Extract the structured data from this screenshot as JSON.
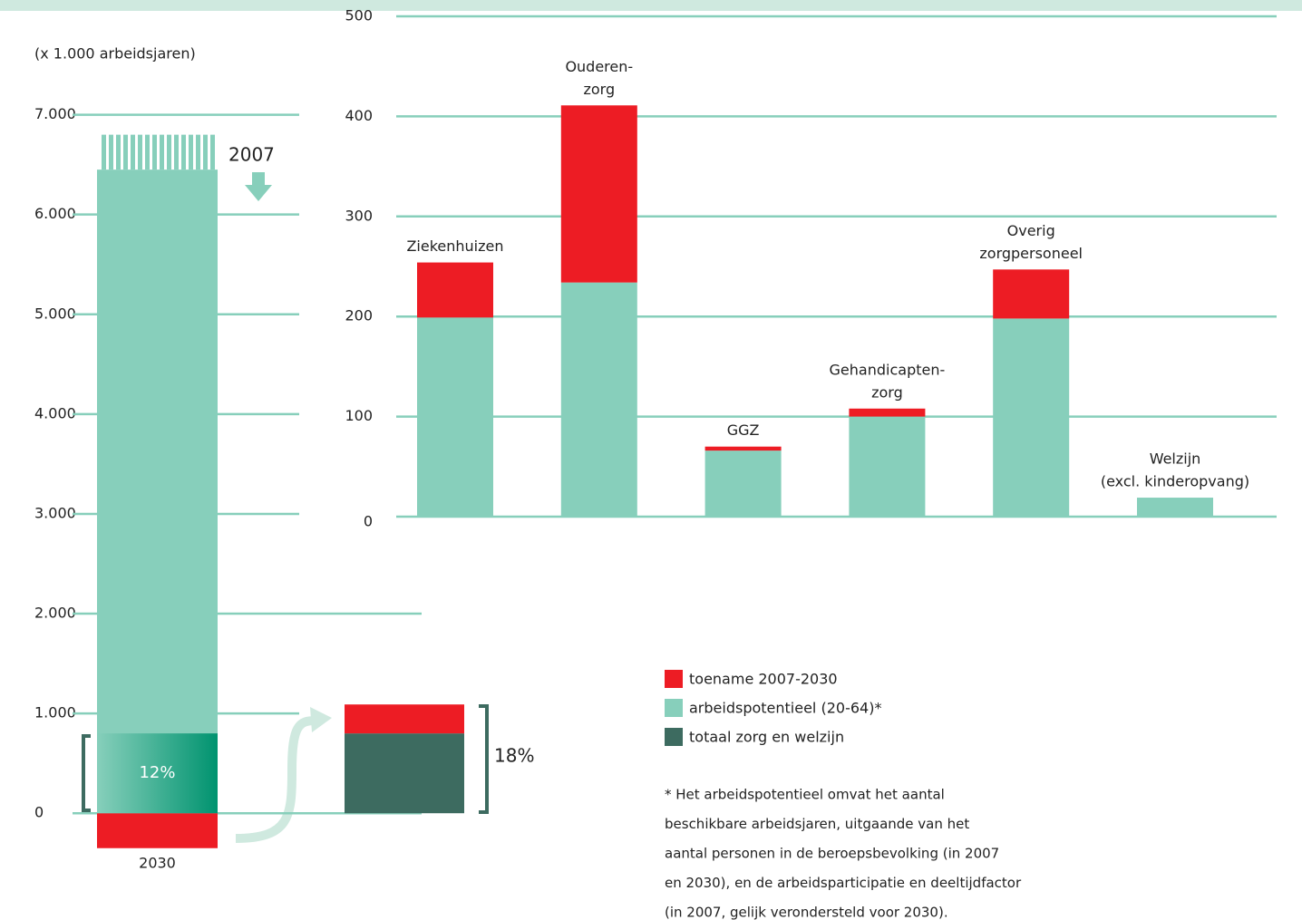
{
  "chart_data": [
    {
      "type": "bar",
      "y_label": "(x 1.000 arbeidsjaren)",
      "ylim": [
        -1070,
        8150
      ],
      "yticks": [
        {
          "value": 0,
          "label": "0"
        },
        {
          "value": 1000,
          "label": "1.000"
        },
        {
          "value": 2000,
          "label": "2.000"
        },
        {
          "value": 3000,
          "label": "3.000"
        },
        {
          "value": 4000,
          "label": "4.000"
        },
        {
          "value": 5000,
          "label": "5.000"
        },
        {
          "value": 6000,
          "label": "6.000"
        },
        {
          "value": 7000,
          "label": "7.000"
        }
      ],
      "grid": true,
      "categories": [
        "2030"
      ],
      "series": [
        {
          "color": "#87cfbb",
          "values": [
            6450
          ]
        },
        {
          "color": "#ed1c24",
          "values": [
            -350
          ]
        },
        {
          "color": "#3d6b60",
          "values": [
            800
          ]
        }
      ],
      "level_2007": 6800,
      "level_2007_label": "2007",
      "share_label": "12%",
      "comparison": {
        "series": [
          {
            "color": "#3d6b60",
            "values": [
              800
            ]
          },
          {
            "color": "#ed1c24",
            "values": [
              290
            ]
          }
        ],
        "share_label": "18%"
      }
    },
    {
      "type": "stacked_bar",
      "ylim": [
        0,
        500
      ],
      "yticks": [
        0,
        100,
        200,
        300,
        400,
        500
      ],
      "grid": true,
      "categories": [
        [
          "Ziekenhuizen"
        ],
        [
          "Ouderen-",
          "zorg"
        ],
        [
          "GGZ"
        ],
        [
          "Gehandicapten-",
          "zorg"
        ],
        [
          "Overig",
          "zorgpersoneel"
        ],
        [
          "Welzijn",
          "(excl. kinderopvang)"
        ]
      ],
      "series": [
        {
          "color": "#87cfbb",
          "values": [
            199,
            234,
            66,
            100,
            198,
            19
          ]
        },
        {
          "color": "#ed1c24",
          "values": [
            55,
            177,
            4,
            8,
            49,
            0
          ]
        }
      ]
    }
  ],
  "legend": [
    {
      "label": "toename 2007-2030",
      "color": "#ed1c24"
    },
    {
      "label": "arbeidspotentieel (20-64)*",
      "color": "#87cfbb"
    },
    {
      "label": "totaal zorg en welzijn",
      "color": "#3d6b60"
    }
  ],
  "footnote": [
    "* Het arbeidspotentieel omvat het aantal",
    "beschikbare arbeidsjaren, uitgaande van het",
    "aantal personen in de beroepsbevolking (in 2007",
    "en 2030), en de arbeidsparticipatie en deeltijdfactor",
    "(in 2007, gelijk verondersteld voor 2030)."
  ]
}
